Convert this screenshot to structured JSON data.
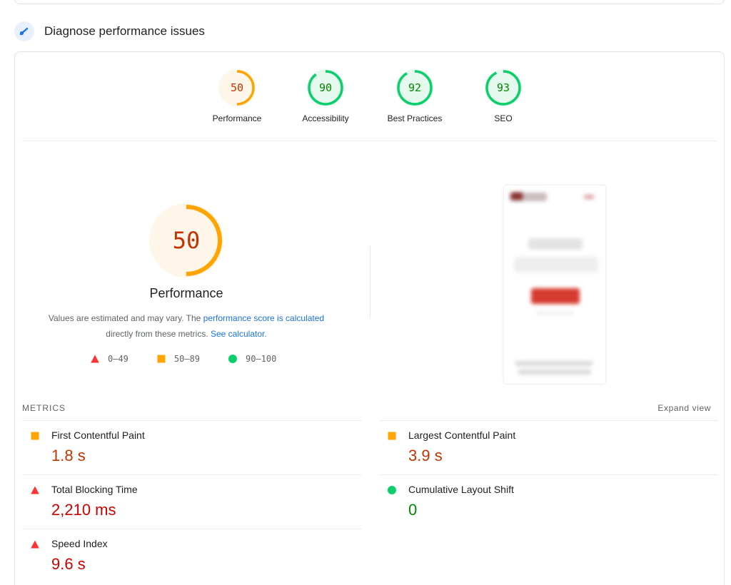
{
  "section": {
    "title": "Diagnose performance issues",
    "icon": "gauge-needle-icon"
  },
  "categories": [
    {
      "label": "Performance",
      "score": "50",
      "fraction": 0.5,
      "rating": "average"
    },
    {
      "label": "Accessibility",
      "score": "90",
      "fraction": 0.9,
      "rating": "pass"
    },
    {
      "label": "Best Practices",
      "score": "92",
      "fraction": 0.92,
      "rating": "pass"
    },
    {
      "label": "SEO",
      "score": "93",
      "fraction": 0.93,
      "rating": "pass"
    }
  ],
  "summary": {
    "score": "50",
    "fraction": 0.5,
    "title": "Performance",
    "note_prefix": "Values are estimated and may vary. The ",
    "note_link1": "performance score is calculated",
    "note_middle": "directly from these metrics. ",
    "note_link2": "See calculator."
  },
  "legend": [
    {
      "shape": "triangle",
      "range": "0–49"
    },
    {
      "shape": "square",
      "range": "50–89"
    },
    {
      "shape": "circle",
      "range": "90–100"
    }
  ],
  "metrics": {
    "title": "METRICS",
    "expand_label": "Expand view",
    "items": [
      {
        "name": "First Contentful Paint",
        "value": "1.8 s",
        "rating": "average"
      },
      {
        "name": "Largest Contentful Paint",
        "value": "3.9 s",
        "rating": "average"
      },
      {
        "name": "Total Blocking Time",
        "value": "2,210 ms",
        "rating": "fail"
      },
      {
        "name": "Cumulative Layout Shift",
        "value": "0",
        "rating": "pass"
      },
      {
        "name": "Speed Index",
        "value": "9.6 s",
        "rating": "fail"
      }
    ]
  },
  "colors": {
    "pass": "#0cce6b",
    "pass_text": "#008800",
    "pass_bg": "#e5f9ee",
    "average": "#ffa400",
    "average_text": "#c33300",
    "average_bg": "#fff6ea",
    "fail": "#ff3333",
    "fail_text": "#cc0000",
    "link": "#1a73e8"
  }
}
